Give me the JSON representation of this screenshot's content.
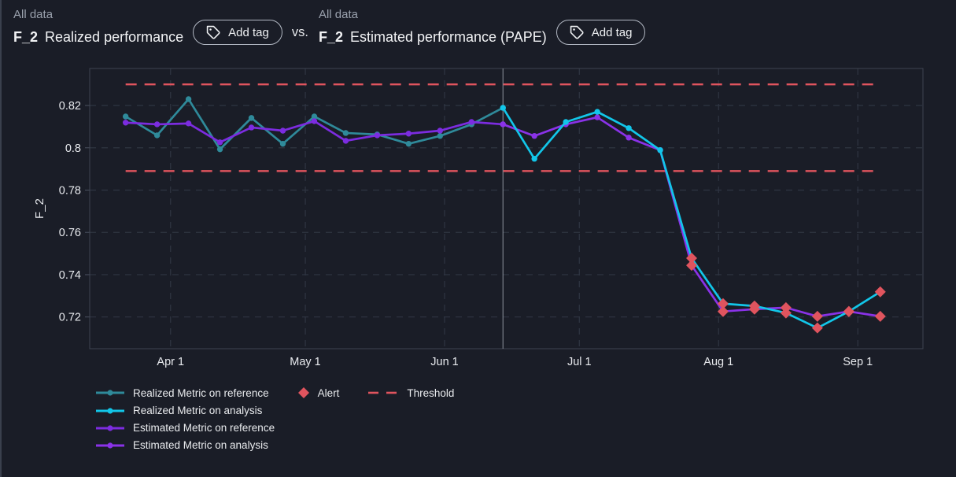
{
  "header": {
    "left": {
      "dataset": "All data",
      "metric": "F_2",
      "title": "Realized performance",
      "add_tag": "Add tag"
    },
    "vs": "vs.",
    "right": {
      "dataset": "All data",
      "metric": "F_2",
      "title": "Estimated performance (PAPE)",
      "add_tag": "Add tag"
    }
  },
  "colors": {
    "background": "#1a1d27",
    "plot_border": "#3e4450",
    "grid": "#2f3542",
    "divider": "#8e939e",
    "text": "#e8eaee",
    "muted_text": "#9aa1ad",
    "teal": "#2f8a9a",
    "cyan": "#12c6e9",
    "purple_reference": "#7c2ce0",
    "purple_analysis": "#8a32e8",
    "alert_red": "#e0545e"
  },
  "chart_data": {
    "type": "line",
    "title": "",
    "xlabel": "",
    "ylabel": "F_2",
    "ylim": [
      0.705,
      0.8375
    ],
    "yticks": [
      0.72,
      0.74,
      0.76,
      0.78,
      0.8,
      0.82
    ],
    "grid": true,
    "x_axis_unit": "date (day 0 = Mar 1)",
    "x_ticks": [
      {
        "label": "Apr 1",
        "day": 31
      },
      {
        "label": "May 1",
        "day": 61
      },
      {
        "label": "Jun 1",
        "day": 92
      },
      {
        "label": "Jul 1",
        "day": 122
      },
      {
        "label": "Aug 1",
        "day": 153
      },
      {
        "label": "Sep 1",
        "day": 184
      }
    ],
    "x_range_days": [
      13,
      198.5
    ],
    "period_divider_day": 105,
    "threshold": {
      "upper": 0.83,
      "lower": 0.789,
      "span_days": [
        21,
        189
      ],
      "color": "#e0545e"
    },
    "alert_marker": {
      "shape": "diamond",
      "color": "#e0545e"
    },
    "series": [
      {
        "name": "Realized Metric on reference",
        "period": "reference",
        "color": "#2f8a9a",
        "dates": [
          "Mar 22",
          "Mar 29",
          "Apr 5",
          "Apr 12",
          "Apr 19",
          "Apr 26",
          "May 3",
          "May 10",
          "May 17",
          "May 24",
          "May 31",
          "Jun 7",
          "Jun 14"
        ],
        "days": [
          21,
          28,
          35,
          42,
          49,
          56,
          63,
          70,
          77,
          84,
          91,
          98,
          105
        ],
        "values": [
          0.8148,
          0.8059,
          0.823,
          0.7993,
          0.8141,
          0.8019,
          0.8148,
          0.807,
          0.8063,
          0.8019,
          0.8056,
          0.8111,
          0.8189
        ],
        "alerts": [
          false,
          false,
          false,
          false,
          false,
          false,
          false,
          false,
          false,
          false,
          false,
          false,
          false
        ]
      },
      {
        "name": "Estimated Metric on reference",
        "period": "reference",
        "color": "#7c2ce0",
        "dates": [
          "Mar 22",
          "Mar 29",
          "Apr 5",
          "Apr 12",
          "Apr 19",
          "Apr 26",
          "May 3",
          "May 10",
          "May 17",
          "May 24",
          "May 31",
          "Jun 7",
          "Jun 14"
        ],
        "days": [
          21,
          28,
          35,
          42,
          49,
          56,
          63,
          70,
          77,
          84,
          91,
          98,
          105
        ],
        "values": [
          0.8119,
          0.8111,
          0.8115,
          0.8026,
          0.8096,
          0.8081,
          0.8126,
          0.8033,
          0.8059,
          0.8067,
          0.8081,
          0.8122,
          0.8111
        ],
        "alerts": [
          false,
          false,
          false,
          false,
          false,
          false,
          false,
          false,
          false,
          false,
          false,
          false,
          false
        ]
      },
      {
        "name": "Estimated Metric on analysis",
        "period": "analysis",
        "color": "#8a32e8",
        "dates": [
          "Jun 14",
          "Jun 21",
          "Jun 28",
          "Jul 5",
          "Jul 12",
          "Jul 19",
          "Jul 26",
          "Aug 2",
          "Aug 9",
          "Aug 16",
          "Aug 23",
          "Aug 30",
          "Sep 6"
        ],
        "days": [
          105,
          112,
          119,
          126,
          133,
          140,
          147,
          154,
          161,
          168,
          175,
          182,
          189
        ],
        "values": [
          0.8111,
          0.8056,
          0.8111,
          0.8144,
          0.8048,
          0.7989,
          0.7444,
          0.7226,
          0.7237,
          0.7244,
          0.7203,
          0.7226,
          0.7203
        ],
        "alerts": [
          false,
          false,
          false,
          false,
          false,
          false,
          true,
          true,
          true,
          true,
          true,
          true,
          true
        ]
      },
      {
        "name": "Realized Metric on analysis",
        "period": "analysis",
        "color": "#12c6e9",
        "dates": [
          "Jun 14",
          "Jun 21",
          "Jun 28",
          "Jul 5",
          "Jul 12",
          "Jul 19",
          "Jul 26",
          "Aug 2",
          "Aug 9",
          "Aug 16",
          "Aug 23",
          "Aug 30",
          "Sep 6"
        ],
        "days": [
          105,
          112,
          119,
          126,
          133,
          140,
          147,
          154,
          161,
          168,
          175,
          182,
          189
        ],
        "values": [
          0.8189,
          0.7948,
          0.8122,
          0.817,
          0.8093,
          0.7989,
          0.7478,
          0.7263,
          0.7252,
          0.7219,
          0.7148,
          0.7226,
          0.7319
        ],
        "alerts": [
          false,
          false,
          false,
          false,
          false,
          false,
          true,
          true,
          true,
          true,
          true,
          true,
          true
        ]
      }
    ]
  },
  "legend": {
    "items": [
      {
        "label": "Realized Metric on reference",
        "marker": "line",
        "color": "#2f8a9a"
      },
      {
        "label": "Realized Metric on analysis",
        "marker": "line",
        "color": "#12c6e9"
      },
      {
        "label": "Estimated Metric on reference",
        "marker": "line",
        "color": "#7c2ce0"
      },
      {
        "label": "Estimated Metric on analysis",
        "marker": "line",
        "color": "#8a32e8"
      },
      {
        "label": "Alert",
        "marker": "diamond",
        "color": "#e0545e"
      },
      {
        "label": "Threshold",
        "marker": "dashes",
        "color": "#e0545e"
      }
    ]
  }
}
